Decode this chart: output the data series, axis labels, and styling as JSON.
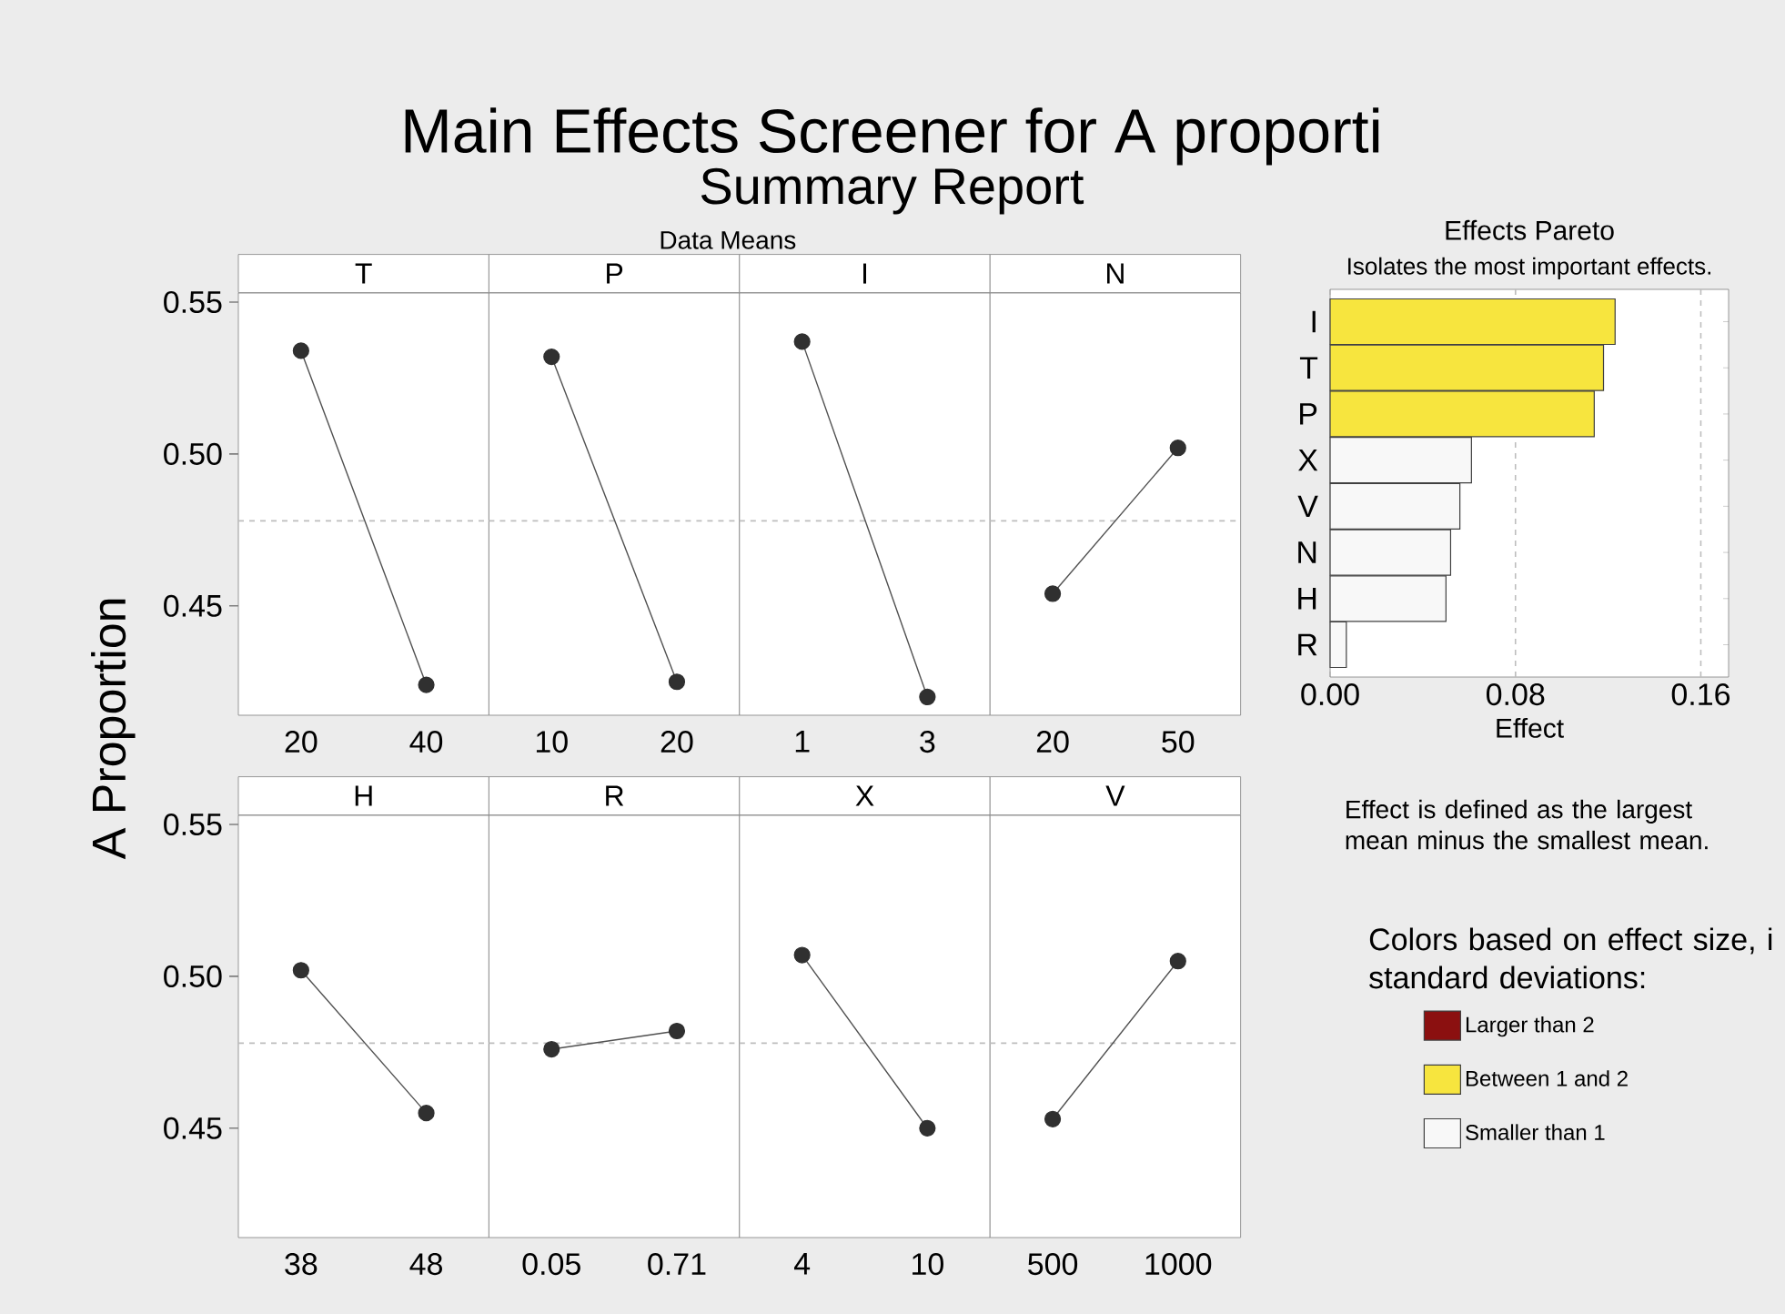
{
  "chart_data": [
    {
      "type": "line",
      "title": "T",
      "ylabel": "A Proportion",
      "annotations": [
        "Main Effects Screener for A proporti",
        "Summary Report",
        "Data Means"
      ],
      "categories": [
        "20",
        "40"
      ],
      "values": [
        0.534,
        0.424
      ],
      "color": "#505050",
      "marker": "circle",
      "ylim": [
        0.414,
        0.553
      ],
      "yticks": [
        {
          "value": 0.55,
          "label": "0.55"
        },
        {
          "value": 0.5,
          "label": "0.50"
        },
        {
          "value": 0.45,
          "label": "0.45"
        }
      ],
      "ref_lines": [
        {
          "axis": "y",
          "value": 0.478,
          "color": "#bdbdbd",
          "line_style": "dashed"
        }
      ]
    },
    {
      "type": "line",
      "title": "P",
      "categories": [
        "10",
        "20"
      ],
      "values": [
        0.532,
        0.425
      ],
      "color": "#505050",
      "marker": "circle",
      "ylim": [
        0.414,
        0.553
      ],
      "tick_labels": "x",
      "ref_lines": [
        {
          "axis": "y",
          "value": 0.478,
          "color": "#bdbdbd",
          "line_style": "dashed"
        }
      ]
    },
    {
      "type": "line",
      "title": "I",
      "categories": [
        "1",
        "3"
      ],
      "values": [
        0.537,
        0.42
      ],
      "color": "#505050",
      "marker": "circle",
      "ylim": [
        0.414,
        0.553
      ],
      "tick_labels": "x",
      "ref_lines": [
        {
          "axis": "y",
          "value": 0.478,
          "color": "#bdbdbd",
          "line_style": "dashed"
        }
      ]
    },
    {
      "type": "line",
      "title": "N",
      "categories": [
        "20",
        "50"
      ],
      "values": [
        0.454,
        0.502
      ],
      "color": "#505050",
      "marker": "circle",
      "ylim": [
        0.414,
        0.553
      ],
      "tick_labels": "x",
      "ref_lines": [
        {
          "axis": "y",
          "value": 0.478,
          "color": "#bdbdbd",
          "line_style": "dashed"
        }
      ]
    },
    {
      "type": "line",
      "title": "H",
      "categories": [
        "38",
        "48"
      ],
      "values": [
        0.502,
        0.455
      ],
      "color": "#505050",
      "marker": "circle",
      "ylim": [
        0.414,
        0.553
      ],
      "yticks": [
        {
          "value": 0.55,
          "label": "0.55"
        },
        {
          "value": 0.5,
          "label": "0.50"
        },
        {
          "value": 0.45,
          "label": "0.45"
        }
      ],
      "ref_lines": [
        {
          "axis": "y",
          "value": 0.478,
          "color": "#bdbdbd",
          "line_style": "dashed"
        }
      ]
    },
    {
      "type": "line",
      "title": "R",
      "categories": [
        "0.05",
        "0.71"
      ],
      "values": [
        0.476,
        0.482
      ],
      "color": "#505050",
      "marker": "circle",
      "ylim": [
        0.414,
        0.553
      ],
      "tick_labels": "x",
      "ref_lines": [
        {
          "axis": "y",
          "value": 0.478,
          "color": "#bdbdbd",
          "line_style": "dashed"
        }
      ]
    },
    {
      "type": "line",
      "title": "X",
      "categories": [
        "4",
        "10"
      ],
      "values": [
        0.507,
        0.45
      ],
      "color": "#505050",
      "marker": "circle",
      "ylim": [
        0.414,
        0.553
      ],
      "tick_labels": "x",
      "ref_lines": [
        {
          "axis": "y",
          "value": 0.478,
          "color": "#bdbdbd",
          "line_style": "dashed"
        }
      ]
    },
    {
      "type": "line",
      "title": "V",
      "categories": [
        "500",
        "1000"
      ],
      "values": [
        0.453,
        0.505
      ],
      "color": "#505050",
      "marker": "circle",
      "ylim": [
        0.414,
        0.553
      ],
      "tick_labels": "x",
      "ref_lines": [
        {
          "axis": "y",
          "value": 0.478,
          "color": "#bdbdbd",
          "line_style": "dashed"
        }
      ]
    },
    {
      "type": "bar",
      "orientation": "horizontal",
      "title": "Effects Pareto",
      "subtitle": "Isolates the most important effects.",
      "xlabel": "Effect",
      "annotations": [
        "Effect is defined as the largest mean minus the smallest mean."
      ],
      "legend_title": "Colors based on effect size, i standard deviations:",
      "legend": "bottom",
      "categories": [
        "I",
        "T",
        "P",
        "X",
        "V",
        "N",
        "H",
        "R"
      ],
      "series": [
        {
          "name": "Larger than 2",
          "color": "#8b1010",
          "values": [
            null,
            null,
            null,
            null,
            null,
            null,
            null,
            null
          ]
        },
        {
          "name": "Between 1 and 2",
          "color": "#f7e53e",
          "values": [
            0.123,
            0.118,
            0.114,
            null,
            null,
            null,
            null,
            null
          ]
        },
        {
          "name": "Smaller than 1",
          "color": "#f8f8f8",
          "values": [
            null,
            null,
            null,
            0.061,
            0.056,
            0.052,
            0.05,
            0.007
          ]
        }
      ],
      "xlim": [
        0,
        0.172
      ],
      "xticks": [
        {
          "value": 0,
          "label": "0.00"
        },
        0.08,
        0.16
      ],
      "ref_lines": [
        {
          "axis": "x",
          "value": 0.08,
          "color": "#bdbdbd",
          "line_style": "dashed"
        },
        {
          "axis": "x",
          "value": 0.16,
          "color": "#bdbdbd",
          "line_style": "dashed"
        }
      ]
    }
  ]
}
